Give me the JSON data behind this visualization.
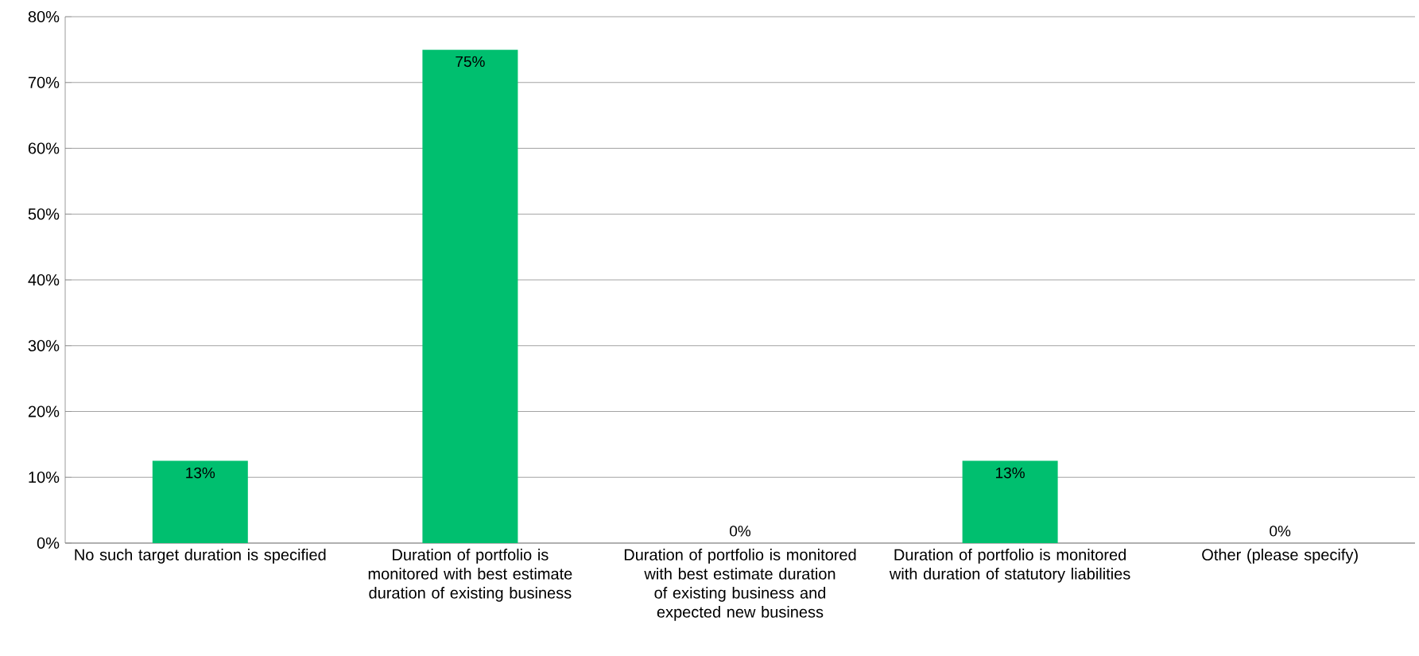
{
  "chart_data": {
    "type": "bar",
    "categories": [
      "No such target duration is specified",
      "Duration of portfolio is monitored with best estimate duration of existing business",
      "Duration of portfolio is monitored with best estimate duration of existing business and expected new business",
      "Duration of portfolio is monitored with duration of statutory liabilities",
      "Other (please specify)"
    ],
    "values": [
      12.5,
      75,
      0,
      12.5,
      0
    ],
    "value_labels": [
      "13%",
      "75%",
      "0%",
      "13%",
      "0%"
    ],
    "color": "#00bf6f",
    "ylim": [
      0,
      80
    ],
    "yticks": [
      {
        "value": 0,
        "label": "0%"
      },
      {
        "value": 10,
        "label": "10%"
      },
      {
        "value": 20,
        "label": "20%"
      },
      {
        "value": 30,
        "label": "30%"
      },
      {
        "value": 40,
        "label": "40%"
      },
      {
        "value": 50,
        "label": "50%"
      },
      {
        "value": 60,
        "label": "60%"
      },
      {
        "value": 70,
        "label": "70%"
      },
      {
        "value": 80,
        "label": "80%"
      }
    ],
    "grid": "y"
  }
}
